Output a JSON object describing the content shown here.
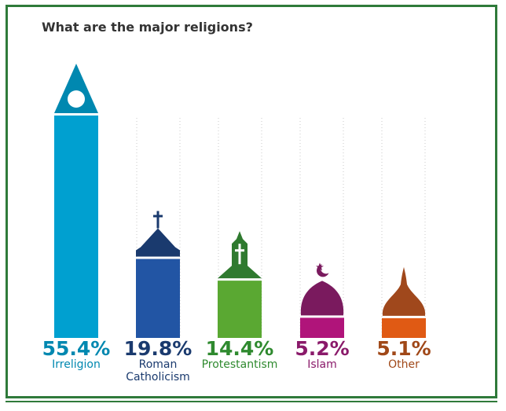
{
  "chart_data": {
    "type": "bar",
    "title": "What are the major religions?",
    "categories": [
      "Irreligion",
      "Roman Catholicism",
      "Protestantism",
      "Islam",
      "Other"
    ],
    "category_lines": [
      [
        "Irreligion"
      ],
      [
        "Roman",
        "Catholicism"
      ],
      [
        "Protestantism"
      ],
      [
        "Islam"
      ],
      [
        "Other"
      ]
    ],
    "values": [
      55.4,
      19.8,
      14.4,
      5.2,
      5.1
    ],
    "value_labels": [
      "55.4%",
      "19.8%",
      "14.4%",
      "5.2%",
      "5.1%"
    ],
    "unit": "%",
    "colors": {
      "bars": [
        "#00a0d0",
        "#2255a4",
        "#5aa832",
        "#b0147a",
        "#e05a14"
      ],
      "tops": [
        "#0088b0",
        "#1a3a6e",
        "#2f7a2f",
        "#7a1a5e",
        "#a0481c"
      ],
      "labels": [
        "#0088b0",
        "#1a3a6e",
        "#2f8a2f",
        "#8a1a6a",
        "#a04818"
      ]
    },
    "icons": [
      "triangle-circle-icon",
      "cross-roof-icon",
      "steeple-cross-icon",
      "crescent-dome-icon",
      "onion-dome-icon"
    ]
  }
}
